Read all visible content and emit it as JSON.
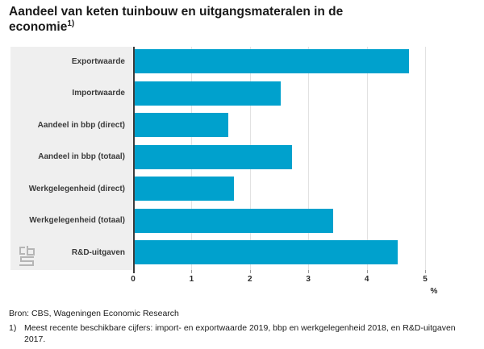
{
  "title": {
    "text": "Aandeel van keten tuinbouw en uitgangsmateralen in de economie",
    "footnote_marker": "1)"
  },
  "chart_data": {
    "type": "bar",
    "orientation": "horizontal",
    "title": "Aandeel van keten tuinbouw en uitgangsmateralen in de economie",
    "categories": [
      "Exportwaarde",
      "Importwaarde",
      "Aandeel in bbp (direct)",
      "Aandeel in bbp (totaal)",
      "Werkgelegenheid (direct)",
      "Werkgelegenheid (totaal)",
      "R&D-uitgaven"
    ],
    "values": [
      4.7,
      2.5,
      1.6,
      2.7,
      1.7,
      3.4,
      4.5
    ],
    "xlabel": "%",
    "ylabel": "",
    "xlim": [
      0,
      5
    ],
    "xticks": [
      0,
      1,
      2,
      3,
      4,
      5
    ],
    "grid": "vertical-gridlines-on",
    "legend": "none"
  },
  "colors": {
    "bar": "#00a1cd",
    "panel_background": "#efefef",
    "plot_background": "#ffffff",
    "gridline": "#e2e2e2",
    "axis_line": "#3c3c3c",
    "text": "#1a1a1a",
    "logo_gray": "#b5b5b5"
  },
  "icons": {
    "cbs_logo": "cbs-logo"
  },
  "footer": {
    "source": "Bron: CBS, Wageningen Economic Research",
    "footnote_marker": "1)",
    "footnote": "Meest recente beschikbare cijfers: import- en exportwaarde 2019, bbp en werkgelegenheid 2018, en R&D-uitgaven 2017."
  }
}
